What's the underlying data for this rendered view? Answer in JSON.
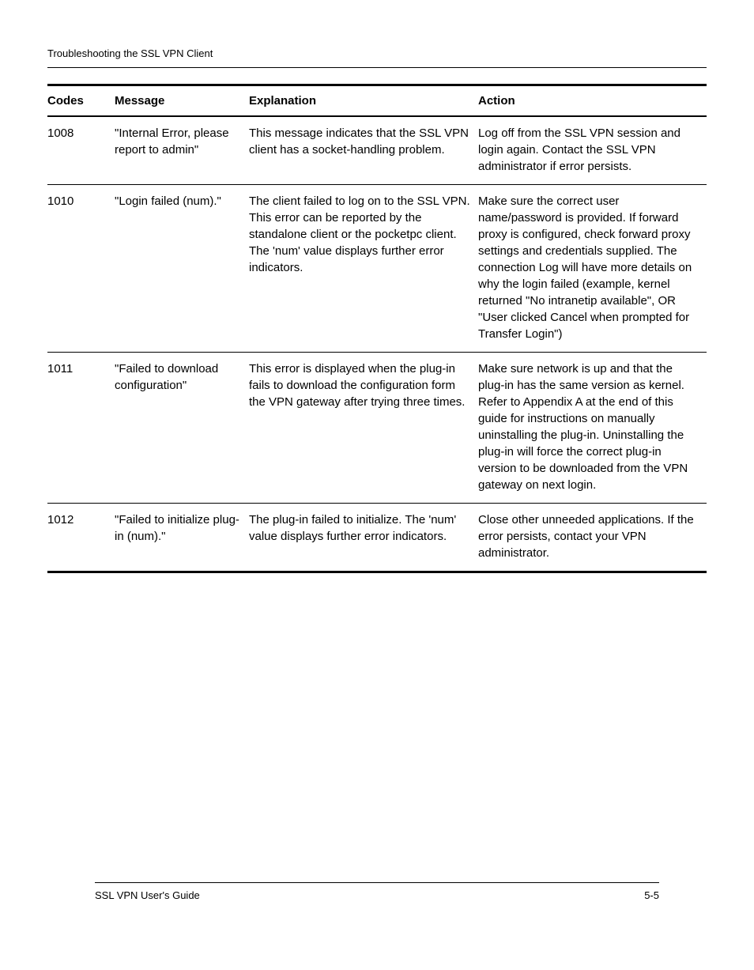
{
  "header": {
    "title": "Troubleshooting the SSL VPN Client"
  },
  "table": {
    "headers": {
      "codes": "Codes",
      "message": "Message",
      "explanation": "Explanation",
      "action": "Action"
    },
    "rows": [
      {
        "code": "1008",
        "message": "\"Internal Error, please report to admin\"",
        "explanation": "This message indicates that the SSL VPN client has a socket-handling problem.",
        "action": "Log off from the SSL VPN session and login again. Contact the SSL VPN administrator if error persists."
      },
      {
        "code": "1010",
        "message": "\"Login failed (num).\"",
        "explanation": "The client failed to log on to the SSL VPN. This error can be reported by the standalone client or the pocketpc client. The 'num' value displays further error indicators.",
        "action": "Make sure the correct user name/password is provided. If forward proxy is configured, check forward proxy settings and credentials supplied. The connection Log will have more details on why the login failed (example, kernel returned \"No intranetip available\", OR \"User clicked Cancel when prompted for Transfer Login\")"
      },
      {
        "code": "1011",
        "message": "\"Failed to download configuration\"",
        "explanation": "This error is displayed when the plug-in fails to download the configuration form the VPN gateway after trying three times.",
        "action": "Make sure network is up and that the plug-in has the same version as kernel. Refer to Appendix A at the end of this guide for instructions on manually uninstalling the plug-in. Uninstalling the plug-in will force the correct plug-in version to be downloaded from the VPN gateway on next login."
      },
      {
        "code": "1012",
        "message": "\"Failed to initialize plug-in (num).\"",
        "explanation": "The plug-in failed to initialize. The 'num' value displays further error indicators.",
        "action": "Close other unneeded applications. If the error persists, contact your VPN administrator."
      }
    ]
  },
  "footer": {
    "left": "SSL VPN User's Guide",
    "right": "5-5"
  }
}
